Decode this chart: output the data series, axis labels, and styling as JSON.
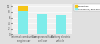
{
  "categories": [
    "Internal combustion\nengine car",
    "Compressed fuel\ncell car",
    "Battery electric\nvehicle"
  ],
  "values_cyan": [
    8.5,
    7.2,
    7.0
  ],
  "values_yellow": [
    1.5,
    0.0,
    0.0
  ],
  "bar_color_cyan": "#7EECEA",
  "bar_color_yellow": "#F5C518",
  "background_color": "#E0E0E0",
  "plot_bg_color": "#F0F0F0",
  "legend_label_yellow": "Production",
  "legend_label_cyan": "Use phase / End-of-life",
  "ylim": [
    0,
    11
  ],
  "grid_color": "#FFFFFF",
  "bar_width": 0.55
}
